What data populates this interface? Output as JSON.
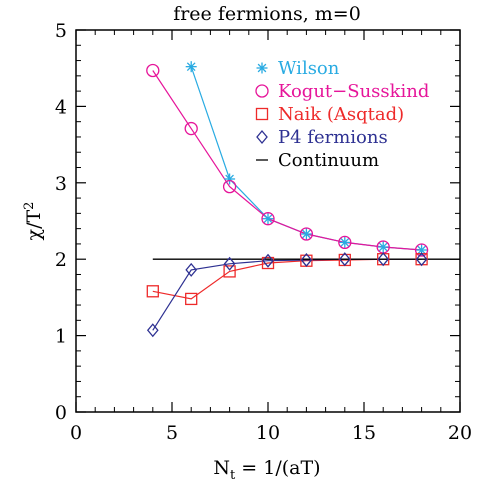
{
  "chart_data": {
    "type": "line",
    "title": "free fermions, m=0",
    "xlabel": "N_t = 1/(aT)",
    "ylabel": "χ/T²",
    "xlim": [
      0,
      20
    ],
    "ylim": [
      0,
      5
    ],
    "xticks": [
      0,
      5,
      10,
      15,
      20
    ],
    "yticks": [
      0,
      1,
      2,
      3,
      4,
      5
    ],
    "x_tick_labels": [
      "0",
      "5",
      "10",
      "15",
      "20"
    ],
    "y_tick_labels": [
      "0",
      "1",
      "2",
      "3",
      "4",
      "5"
    ],
    "grid": false,
    "legend_position": "top-right",
    "series": [
      {
        "name": "Wilson",
        "color": "#29abe2",
        "marker": "asterisk",
        "x": [
          6,
          8,
          10,
          12,
          14,
          16,
          18
        ],
        "y": [
          4.52,
          3.05,
          2.53,
          2.33,
          2.22,
          2.16,
          2.12
        ]
      },
      {
        "name": "Kogut−Susskind",
        "color": "#e6159a",
        "marker": "circle",
        "x": [
          4,
          6,
          8,
          10,
          12,
          14,
          16,
          18
        ],
        "y": [
          4.47,
          3.71,
          2.95,
          2.53,
          2.33,
          2.22,
          2.16,
          2.12
        ]
      },
      {
        "name": "Naik (Asqtad)",
        "color": "#ee2a2a",
        "marker": "square",
        "x": [
          4,
          6,
          8,
          10,
          12,
          14,
          16,
          18
        ],
        "y": [
          1.58,
          1.48,
          1.84,
          1.95,
          1.98,
          1.99,
          2.0,
          2.0
        ]
      },
      {
        "name": "P4 fermions",
        "color": "#2e3192",
        "marker": "diamond",
        "x": [
          4,
          6,
          8,
          10,
          12,
          14,
          16,
          18
        ],
        "y": [
          1.07,
          1.86,
          1.94,
          1.98,
          1.99,
          2.0,
          2.0,
          2.0
        ]
      },
      {
        "name": "Continuum",
        "color": "#000000",
        "marker": "none",
        "x": [
          4,
          20
        ],
        "y": [
          2,
          2
        ]
      }
    ]
  }
}
